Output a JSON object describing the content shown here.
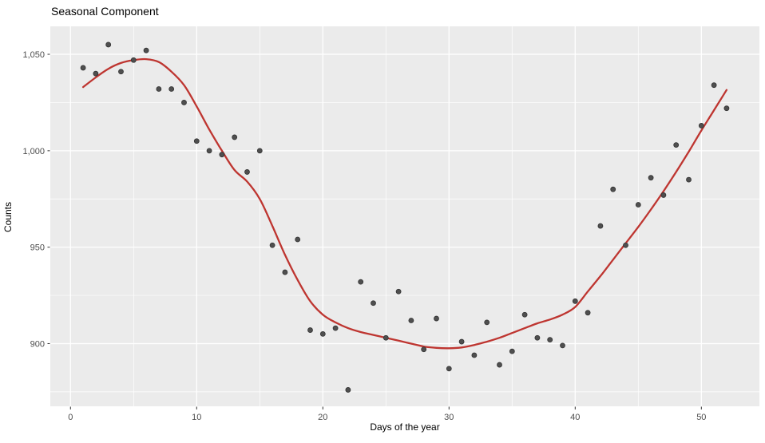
{
  "chart": {
    "title": "Seasonal Component",
    "xlabel": "Days of the year",
    "ylabel": "Counts"
  },
  "chart_data": {
    "type": "scatter",
    "title": "Seasonal Component",
    "xlabel": "Days of the year",
    "ylabel": "Counts",
    "xlim": [
      -1.6,
      54.6
    ],
    "ylim": [
      867.5,
      1064.5
    ],
    "x_ticks": [
      0,
      10,
      20,
      30,
      40,
      50
    ],
    "x_tick_labels": [
      "0",
      "10",
      "20",
      "30",
      "40",
      "50"
    ],
    "y_ticks": [
      900,
      950,
      1000,
      1050
    ],
    "y_tick_labels": [
      "900",
      "950",
      "1,000",
      "1,050"
    ],
    "x_minor_gridlines": [
      5,
      15,
      25,
      35,
      45
    ],
    "y_minor_gridlines": [
      875,
      925,
      975,
      1025
    ],
    "grid": true,
    "legend": "none",
    "panel_bg": "#EBEBEB",
    "grid_color": "#FFFFFF",
    "tick_color": "#333333",
    "point_color": "#4F4F4F",
    "line_color": "#BE3530",
    "series": [
      {
        "name": "seasonal-counts-points",
        "type": "points",
        "x": [
          1,
          2,
          3,
          4,
          5,
          6,
          7,
          8,
          9,
          10,
          11,
          12,
          13,
          14,
          15,
          16,
          17,
          18,
          19,
          20,
          21,
          22,
          23,
          24,
          25,
          26,
          27,
          28,
          29,
          30,
          31,
          32,
          33,
          34,
          35,
          36,
          37,
          38,
          39,
          40,
          41,
          42,
          43,
          44,
          45,
          46,
          47,
          48,
          49,
          50,
          51,
          52
        ],
        "y": [
          1043,
          1040,
          1055,
          1041,
          1047,
          1052,
          1032,
          1032,
          1025,
          1005,
          1000,
          998,
          1007,
          989,
          1000,
          951,
          937,
          954,
          907,
          905,
          908,
          876,
          932,
          921,
          903,
          927,
          912,
          897,
          913,
          887,
          901,
          894,
          911,
          889,
          896,
          915,
          903,
          902,
          899,
          922,
          916,
          961,
          980,
          951,
          972,
          986,
          977,
          1003,
          985,
          1013,
          1034,
          1022
        ]
      },
      {
        "name": "loess-smooth-line",
        "type": "line",
        "x": [
          1,
          2,
          3,
          4,
          5,
          6,
          7,
          8,
          9,
          10,
          11,
          12,
          13,
          14,
          15,
          16,
          17,
          18,
          19,
          20,
          21,
          22,
          23,
          24,
          25,
          26,
          27,
          28,
          29,
          30,
          31,
          32,
          33,
          34,
          35,
          36,
          37,
          38,
          39,
          40,
          41,
          42,
          43,
          44,
          45,
          46,
          47,
          48,
          49,
          50,
          51,
          52
        ],
        "y": [
          1033,
          1038,
          1042.5,
          1045.5,
          1047,
          1047.5,
          1046,
          1041,
          1034,
          1023,
          1011,
          1000,
          990,
          984,
          975,
          961,
          946,
          933,
          922,
          915,
          911,
          908,
          906,
          904.5,
          903,
          901.5,
          900,
          898.5,
          897.8,
          897.6,
          898,
          899.3,
          901,
          903,
          905.5,
          908,
          910.5,
          912.5,
          915,
          919,
          927,
          935,
          943.5,
          952,
          960.5,
          969.5,
          979,
          989,
          999.5,
          1010.5,
          1021,
          1031.5
        ]
      }
    ]
  }
}
